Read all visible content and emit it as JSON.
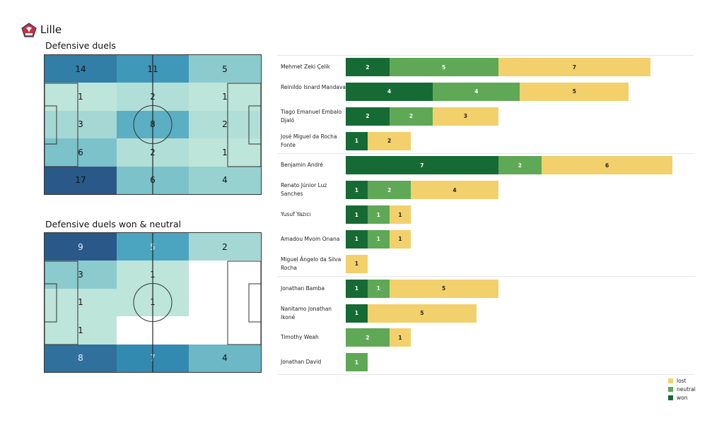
{
  "team": "Lille",
  "colors": {
    "won": "#166a34",
    "neutral": "#5ea856",
    "lost": "#f2d06b"
  },
  "chart_data": [
    {
      "type": "heatmap",
      "title": "Defensive duels",
      "rows": 5,
      "cols": 3,
      "values": [
        [
          14,
          11,
          5
        ],
        [
          1,
          2,
          1
        ],
        [
          3,
          8,
          2
        ],
        [
          6,
          2,
          1
        ],
        [
          17,
          6,
          4
        ]
      ]
    },
    {
      "type": "heatmap",
      "title": "Defensive duels won & neutral",
      "rows": 5,
      "cols": 3,
      "values": [
        [
          9,
          5,
          2
        ],
        [
          3,
          1,
          0
        ],
        [
          1,
          1,
          0
        ],
        [
          1,
          0,
          0
        ],
        [
          8,
          7,
          4
        ]
      ]
    },
    {
      "type": "bar",
      "orientation": "horizontal",
      "stacked": true,
      "series_names": [
        "won",
        "neutral",
        "lost"
      ],
      "legend": [
        "lost",
        "neutral",
        "won"
      ],
      "legend_position": "bottom-right",
      "players": [
        {
          "name": "Mehmet Zeki Çelik",
          "won": 2,
          "neutral": 5,
          "lost": 7,
          "group": 0
        },
        {
          "name": "Reinildo Isnard Mandava",
          "won": 4,
          "neutral": 4,
          "lost": 5,
          "group": 0
        },
        {
          "name": "Tiago Emanuel Embalo Djaló",
          "won": 2,
          "neutral": 2,
          "lost": 3,
          "group": 0
        },
        {
          "name": "José Miguel da Rocha Fonte",
          "won": 1,
          "neutral": 0,
          "lost": 2,
          "group": 0
        },
        {
          "name": "Benjamin André",
          "won": 7,
          "neutral": 2,
          "lost": 6,
          "group": 1
        },
        {
          "name": "Renato Júnior Luz Sanches",
          "won": 1,
          "neutral": 2,
          "lost": 4,
          "group": 1
        },
        {
          "name": "Yusuf Yazıcı",
          "won": 1,
          "neutral": 1,
          "lost": 1,
          "group": 1
        },
        {
          "name": "Amadou Mvom Onana",
          "won": 1,
          "neutral": 1,
          "lost": 1,
          "group": 1
        },
        {
          "name": "Miguel Ângelo da Silva Rocha",
          "won": 0,
          "neutral": 0,
          "lost": 1,
          "group": 1
        },
        {
          "name": "Jonathan Bamba",
          "won": 1,
          "neutral": 1,
          "lost": 5,
          "group": 2
        },
        {
          "name": "Nanitamo Jonathan Ikoné",
          "won": 1,
          "neutral": 0,
          "lost": 5,
          "group": 2
        },
        {
          "name": "Timothy Weah",
          "won": 0,
          "neutral": 2,
          "lost": 1,
          "group": 2
        },
        {
          "name": "Jonathan David",
          "won": 0,
          "neutral": 1,
          "lost": 0,
          "group": 2
        }
      ]
    }
  ]
}
